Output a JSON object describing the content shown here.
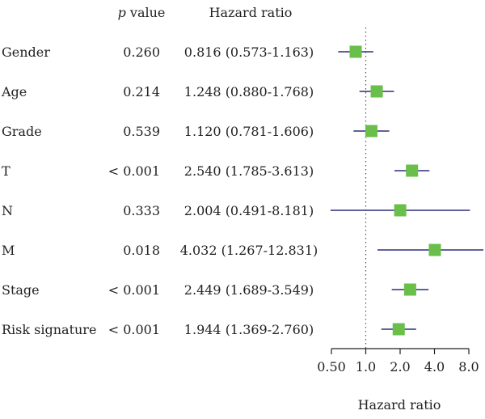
{
  "chart_data": {
    "type": "forest",
    "header": {
      "pvalue_label_italic": "p",
      "pvalue_label_rest": " value",
      "hr_label": "Hazard ratio"
    },
    "xlabel": "Hazard ratio",
    "x_scale": "log2",
    "xlim": [
      0.5,
      8.0
    ],
    "x_ticks": [
      0.5,
      1.0,
      2.0,
      4.0,
      8.0
    ],
    "x_tick_labels": [
      "0.50",
      "1.0",
      "2.0",
      "4.0",
      "8.0"
    ],
    "reference_line": 1.0,
    "rows": [
      {
        "name": "Gender",
        "p": "0.260",
        "hr_text": "0.816 (0.573-1.163)",
        "hr": 0.816,
        "lo": 0.573,
        "hi": 1.163
      },
      {
        "name": "Age",
        "p": "0.214",
        "hr_text": "1.248 (0.880-1.768)",
        "hr": 1.248,
        "lo": 0.88,
        "hi": 1.768
      },
      {
        "name": "Grade",
        "p": "0.539",
        "hr_text": "1.120 (0.781-1.606)",
        "hr": 1.12,
        "lo": 0.781,
        "hi": 1.606
      },
      {
        "name": "T",
        "p": "< 0.001",
        "hr_text": "2.540 (1.785-3.613)",
        "hr": 2.54,
        "lo": 1.785,
        "hi": 3.613
      },
      {
        "name": "N",
        "p": "0.333",
        "hr_text": "2.004 (0.491-8.181)",
        "hr": 2.004,
        "lo": 0.491,
        "hi": 8.181
      },
      {
        "name": "M",
        "p": "0.018",
        "hr_text": "4.032 (1.267-12.831)",
        "hr": 4.032,
        "lo": 1.267,
        "hi": 12.831
      },
      {
        "name": "Stage",
        "p": "< 0.001",
        "hr_text": "2.449 (1.689-3.549)",
        "hr": 2.449,
        "lo": 1.689,
        "hi": 3.549
      },
      {
        "name": "Risk signature",
        "p": "< 0.001",
        "hr_text": "1.944 (1.369-2.760)",
        "hr": 1.944,
        "lo": 1.369,
        "hi": 2.76
      }
    ],
    "colors": {
      "marker": "#6abf4b",
      "ci_line": "#2a2f7a",
      "reference": "#555555",
      "axis": "#222222"
    }
  }
}
